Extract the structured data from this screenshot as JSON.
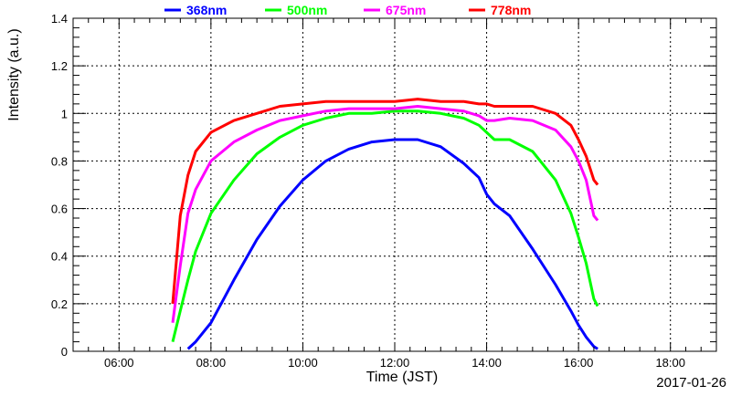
{
  "chart_data": {
    "type": "line",
    "title": "",
    "xlabel": "Time (JST)",
    "ylabel": "Intensity (a.u.)",
    "date": "2017-01-26",
    "xlim": [
      "05:00",
      "19:00"
    ],
    "ylim": [
      0,
      1.4
    ],
    "x_ticks": [
      "06:00",
      "08:00",
      "10:00",
      "12:00",
      "14:00",
      "16:00",
      "18:00"
    ],
    "y_ticks": [
      "0",
      "0.2",
      "0.4",
      "0.6",
      "0.8",
      "1",
      "1.2",
      "1.4"
    ],
    "grid": true,
    "legend": "top",
    "x": [
      "07:10",
      "07:20",
      "07:30",
      "07:40",
      "08:00",
      "08:30",
      "09:00",
      "09:30",
      "10:00",
      "10:30",
      "11:00",
      "11:30",
      "12:00",
      "12:30",
      "13:00",
      "13:30",
      "13:50",
      "14:00",
      "14:10",
      "14:30",
      "15:00",
      "15:30",
      "15:50",
      "16:00",
      "16:10",
      "16:20",
      "16:25"
    ],
    "series": [
      {
        "name": "368nm",
        "color": "#0000ff",
        "values": [
          null,
          null,
          0.01,
          0.04,
          0.12,
          0.3,
          0.47,
          0.61,
          0.72,
          0.8,
          0.85,
          0.88,
          0.89,
          0.89,
          0.86,
          0.79,
          0.73,
          0.66,
          0.62,
          0.57,
          0.43,
          0.28,
          0.17,
          0.11,
          0.06,
          0.02,
          0.01
        ]
      },
      {
        "name": "500nm",
        "color": "#00ff00",
        "values": [
          0.04,
          0.17,
          0.3,
          0.42,
          0.58,
          0.72,
          0.83,
          0.9,
          0.95,
          0.98,
          1.0,
          1.0,
          1.01,
          1.01,
          1.0,
          0.98,
          0.95,
          0.92,
          0.89,
          0.89,
          0.84,
          0.72,
          0.58,
          0.48,
          0.37,
          0.22,
          0.19
        ]
      },
      {
        "name": "675nm",
        "color": "#ff00ff",
        "values": [
          0.12,
          0.36,
          0.58,
          0.68,
          0.8,
          0.88,
          0.93,
          0.97,
          0.99,
          1.01,
          1.02,
          1.02,
          1.02,
          1.03,
          1.02,
          1.01,
          0.99,
          0.97,
          0.97,
          0.98,
          0.97,
          0.93,
          0.86,
          0.8,
          0.72,
          0.57,
          0.55
        ]
      },
      {
        "name": "778nm",
        "color": "#ff0000",
        "values": [
          0.2,
          0.57,
          0.74,
          0.84,
          0.92,
          0.97,
          1.0,
          1.03,
          1.04,
          1.05,
          1.05,
          1.05,
          1.05,
          1.06,
          1.05,
          1.05,
          1.04,
          1.04,
          1.03,
          1.03,
          1.03,
          1.0,
          0.95,
          0.89,
          0.82,
          0.72,
          0.7
        ]
      }
    ]
  }
}
